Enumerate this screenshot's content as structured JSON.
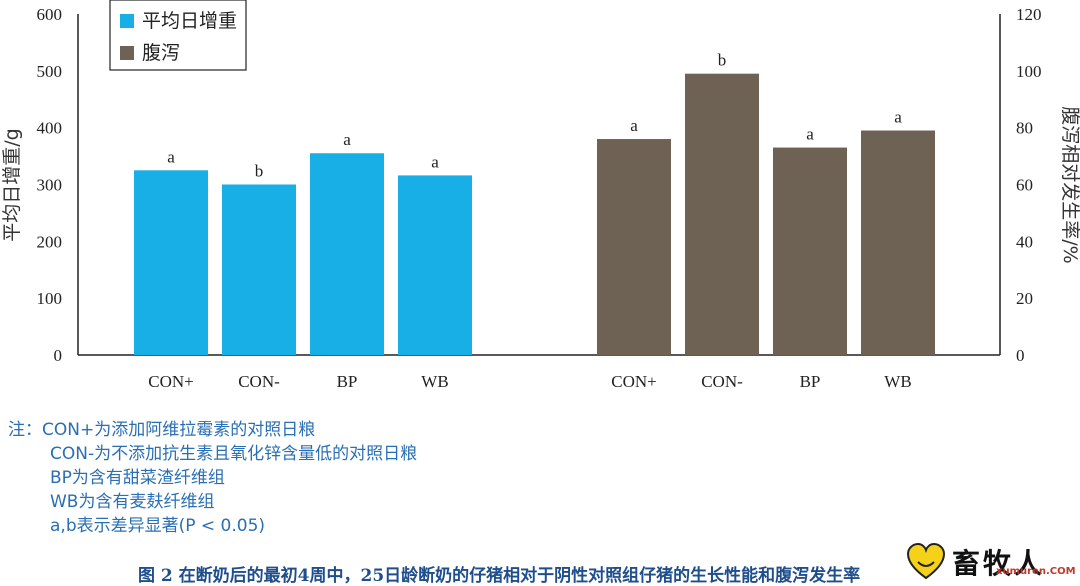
{
  "chart_data": {
    "type": "bar",
    "left_axis": {
      "label": "平均日增重/g",
      "ylim": [
        0,
        600
      ],
      "ticks": [
        "0",
        "100",
        "200",
        "300",
        "400",
        "500",
        "600"
      ]
    },
    "right_axis": {
      "label": "腹泻相对发生率/%",
      "ylim": [
        0,
        120
      ],
      "ticks": [
        "0",
        "20",
        "40",
        "60",
        "80",
        "100",
        "120"
      ]
    },
    "legend": {
      "position": "top-left"
    },
    "series": [
      {
        "name": "平均日增重",
        "axis": "left",
        "color": "#18aee6",
        "categories": [
          "CON+",
          "CON-",
          "BP",
          "WB"
        ],
        "values": [
          325,
          300,
          355,
          316
        ],
        "significance": [
          "a",
          "b",
          "a",
          "a"
        ]
      },
      {
        "name": "腹泻",
        "axis": "right",
        "color": "#6e6255",
        "categories": [
          "CON+",
          "CON-",
          "BP",
          "WB"
        ],
        "values": [
          76,
          99,
          73,
          79
        ],
        "significance": [
          "a",
          "b",
          "a",
          "a"
        ]
      }
    ]
  },
  "notes": {
    "prefix": "注：",
    "lines": [
      "CON+为添加阿维拉霉素的对照日粮",
      "CON-为不添加抗生素且氧化锌含量低的对照日粮",
      "BP为含有甜菜渣纤维组",
      "WB为含有麦麸纤维组",
      "a,b表示差异显著(P < 0.05)"
    ]
  },
  "caption": "图 2  在断奶后的最初4周中，25日龄断奶的仔猪相对于阴性对照组仔猪的生长性能和腹泻发生率",
  "watermark": {
    "brand": "畜牧人",
    "domain": "xumuren.COM",
    "icon": "heart-logo-icon"
  }
}
